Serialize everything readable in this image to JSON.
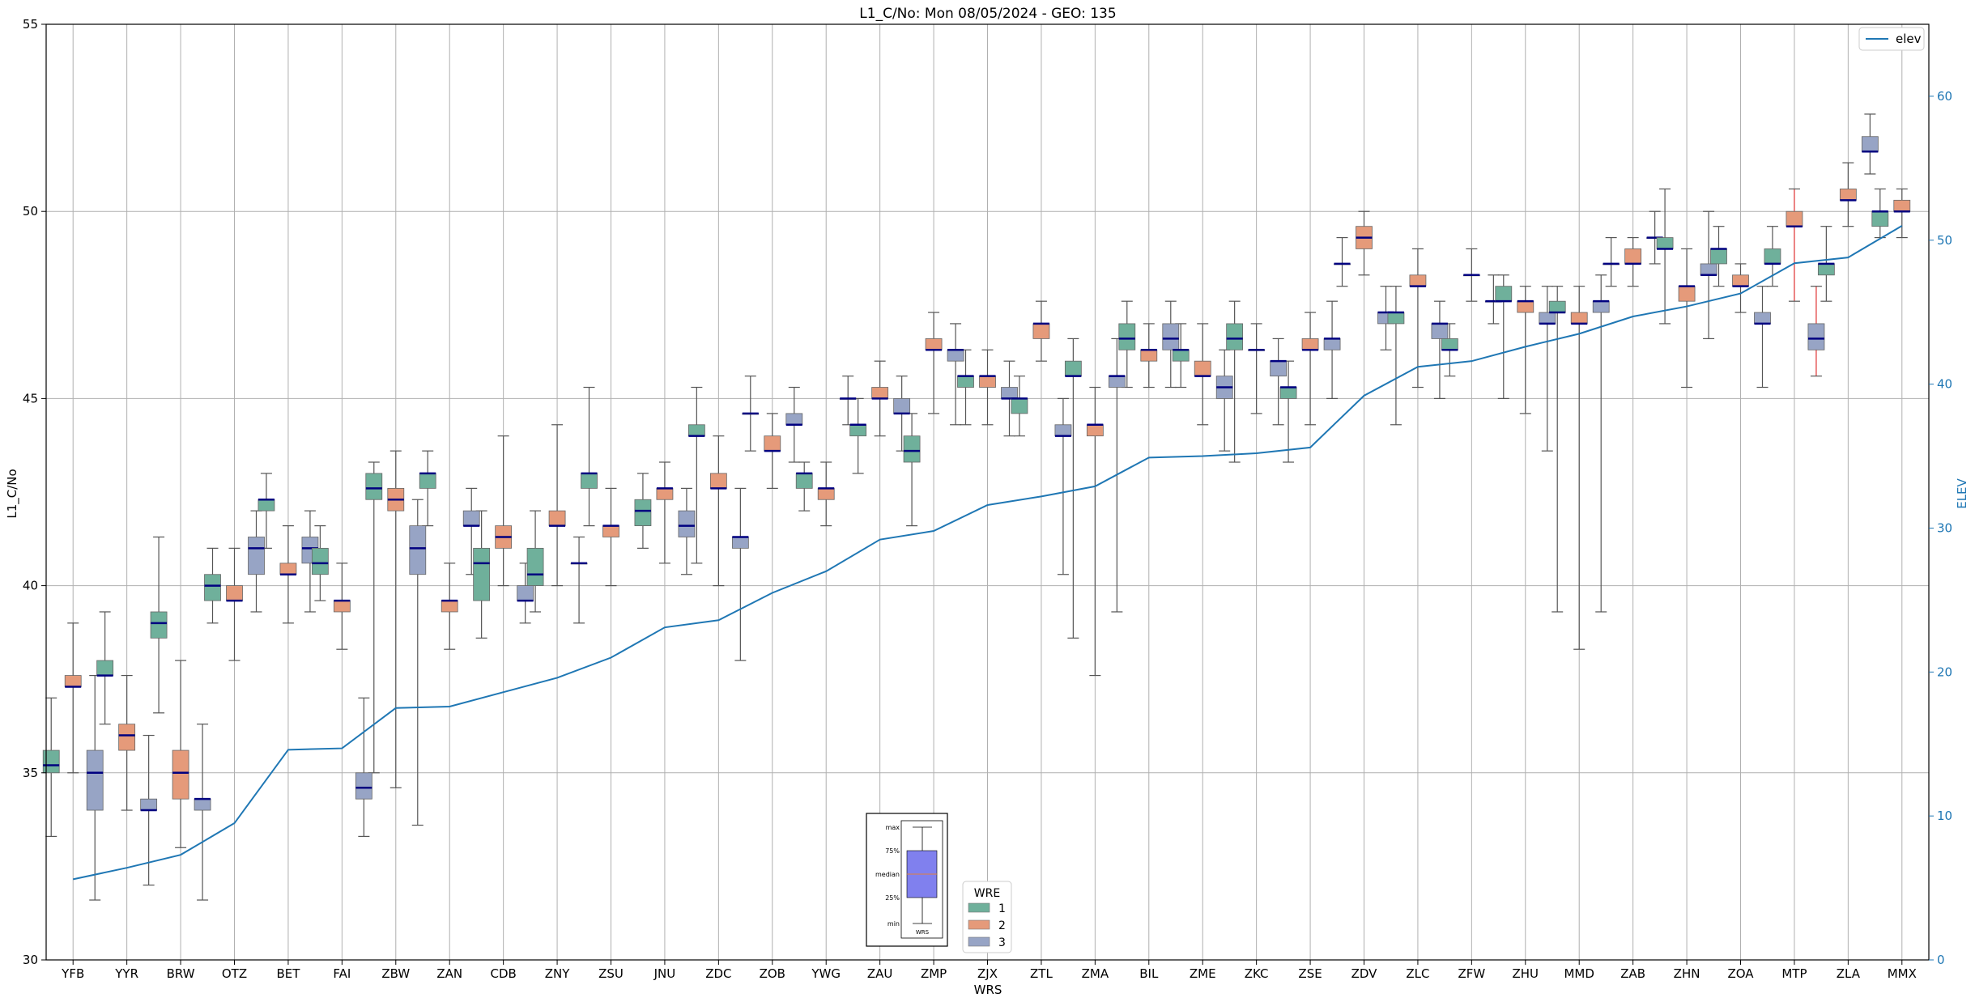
{
  "chart_data": {
    "type": "box",
    "title": "L1_C/No: Mon 08/05/2024 - GEO: 135",
    "xlabel": "WRS",
    "ylabel": "L1_C/No",
    "y2label": "ELEV",
    "ylim": [
      30,
      55
    ],
    "y2lim": [
      0,
      65
    ],
    "yticks": [
      30,
      35,
      40,
      45,
      50,
      55
    ],
    "y2ticks": [
      0,
      10,
      20,
      30,
      40,
      50,
      60
    ],
    "grid": true,
    "categories": [
      "YFB",
      "YYR",
      "BRW",
      "OTZ",
      "BET",
      "FAI",
      "ZBW",
      "ZAN",
      "CDB",
      "ZNY",
      "ZSU",
      "JNU",
      "ZDC",
      "ZOB",
      "YWG",
      "ZAU",
      "ZMP",
      "ZJX",
      "ZTL",
      "ZMA",
      "BIL",
      "ZME",
      "ZKC",
      "ZSE",
      "ZDV",
      "ZLC",
      "ZFW",
      "ZHU",
      "MMD",
      "ZAB",
      "ZHN",
      "ZOA",
      "MTP",
      "ZLA",
      "MMX"
    ],
    "legend_wre": {
      "title": "WRE",
      "placement": "bottom-center",
      "entries": [
        {
          "label": "1",
          "color": "#6fb09b"
        },
        {
          "label": "2",
          "color": "#e59a7a"
        },
        {
          "label": "3",
          "color": "#97a4c5"
        }
      ]
    },
    "legend_elev": {
      "label": "elev",
      "placement": "top-right",
      "color": "#1f77b4"
    },
    "key_box": {
      "labels": [
        "max",
        "75%",
        "median",
        "25%",
        "min"
      ],
      "footer": "WRS"
    },
    "median_color": "#000080",
    "whisker_color": "#555555",
    "highlight_whisker_color": "#e03030",
    "elevation": [
      5.6,
      6.4,
      7.3,
      9.5,
      14.6,
      14.7,
      17.5,
      17.6,
      18.6,
      19.6,
      21.0,
      23.1,
      23.6,
      25.5,
      27.0,
      29.2,
      29.8,
      31.6,
      32.2,
      32.9,
      34.9,
      35.0,
      35.2,
      35.6,
      39.2,
      41.2,
      41.6,
      42.6,
      43.5,
      44.7,
      45.4,
      46.3,
      48.4,
      48.8,
      51.0
    ],
    "boxes": [
      {
        "site": "YFB",
        "wre": 1,
        "min": 33.3,
        "q1": 35.0,
        "median": 35.2,
        "q3": 35.6,
        "max": 37.0
      },
      {
        "site": "YFB",
        "wre": 2,
        "min": 35.0,
        "q1": 37.3,
        "median": 37.3,
        "q3": 37.6,
        "max": 39.0
      },
      {
        "site": "YFB",
        "wre": 3,
        "min": 31.6,
        "q1": 34.0,
        "median": 35.0,
        "q3": 35.6,
        "max": 37.6
      },
      {
        "site": "YYR",
        "wre": 1,
        "min": 36.3,
        "q1": 37.6,
        "median": 37.6,
        "q3": 38.0,
        "max": 39.3
      },
      {
        "site": "YYR",
        "wre": 2,
        "min": 34.0,
        "q1": 35.6,
        "median": 36.0,
        "q3": 36.3,
        "max": 37.6
      },
      {
        "site": "YYR",
        "wre": 3,
        "min": 32.0,
        "q1": 34.0,
        "median": 34.0,
        "q3": 34.3,
        "max": 36.0
      },
      {
        "site": "BRW",
        "wre": 1,
        "min": 36.6,
        "q1": 38.6,
        "median": 39.0,
        "q3": 39.3,
        "max": 41.3
      },
      {
        "site": "BRW",
        "wre": 2,
        "min": 33.0,
        "q1": 34.3,
        "median": 35.0,
        "q3": 35.6,
        "max": 38.0
      },
      {
        "site": "BRW",
        "wre": 3,
        "min": 31.6,
        "q1": 34.0,
        "median": 34.3,
        "q3": 34.3,
        "max": 36.3
      },
      {
        "site": "OTZ",
        "wre": 1,
        "min": 39.0,
        "q1": 39.6,
        "median": 40.0,
        "q3": 40.3,
        "max": 41.0
      },
      {
        "site": "OTZ",
        "wre": 2,
        "min": 38.0,
        "q1": 39.6,
        "median": 39.6,
        "q3": 40.0,
        "max": 41.0
      },
      {
        "site": "OTZ",
        "wre": 3,
        "min": 39.3,
        "q1": 40.3,
        "median": 41.0,
        "q3": 41.3,
        "max": 42.0
      },
      {
        "site": "BET",
        "wre": 1,
        "min": 41.0,
        "q1": 42.0,
        "median": 42.3,
        "q3": 42.3,
        "max": 43.0
      },
      {
        "site": "BET",
        "wre": 2,
        "min": 39.0,
        "q1": 40.3,
        "median": 40.3,
        "q3": 40.6,
        "max": 41.6
      },
      {
        "site": "BET",
        "wre": 3,
        "min": 39.3,
        "q1": 40.6,
        "median": 41.0,
        "q3": 41.3,
        "max": 42.0
      },
      {
        "site": "FAI",
        "wre": 1,
        "min": 39.6,
        "q1": 40.3,
        "median": 40.6,
        "q3": 41.0,
        "max": 41.6
      },
      {
        "site": "FAI",
        "wre": 2,
        "min": 38.3,
        "q1": 39.3,
        "median": 39.6,
        "q3": 39.6,
        "max": 40.6
      },
      {
        "site": "FAI",
        "wre": 3,
        "min": 33.3,
        "q1": 34.3,
        "median": 34.6,
        "q3": 35.0,
        "max": 37.0
      },
      {
        "site": "ZBW",
        "wre": 1,
        "min": 35.0,
        "q1": 42.3,
        "median": 42.6,
        "q3": 43.0,
        "max": 43.3
      },
      {
        "site": "ZBW",
        "wre": 2,
        "min": 34.6,
        "q1": 42.0,
        "median": 42.3,
        "q3": 42.6,
        "max": 43.6
      },
      {
        "site": "ZBW",
        "wre": 3,
        "min": 33.6,
        "q1": 40.3,
        "median": 41.0,
        "q3": 41.6,
        "max": 42.3
      },
      {
        "site": "ZAN",
        "wre": 1,
        "min": 41.6,
        "q1": 42.6,
        "median": 43.0,
        "q3": 43.0,
        "max": 43.6
      },
      {
        "site": "ZAN",
        "wre": 2,
        "min": 38.3,
        "q1": 39.3,
        "median": 39.6,
        "q3": 39.6,
        "max": 40.6
      },
      {
        "site": "ZAN",
        "wre": 3,
        "min": 40.3,
        "q1": 41.6,
        "median": 41.6,
        "q3": 42.0,
        "max": 42.6
      },
      {
        "site": "CDB",
        "wre": 1,
        "min": 38.6,
        "q1": 39.6,
        "median": 40.6,
        "q3": 41.0,
        "max": 42.0
      },
      {
        "site": "CDB",
        "wre": 2,
        "min": 40.0,
        "q1": 41.0,
        "median": 41.3,
        "q3": 41.6,
        "max": 44.0
      },
      {
        "site": "CDB",
        "wre": 3,
        "min": 39.0,
        "q1": 39.6,
        "median": 39.6,
        "q3": 40.0,
        "max": 40.6
      },
      {
        "site": "ZNY",
        "wre": 1,
        "min": 39.3,
        "q1": 40.0,
        "median": 40.3,
        "q3": 41.0,
        "max": 42.0
      },
      {
        "site": "ZNY",
        "wre": 2,
        "min": 40.0,
        "q1": 41.6,
        "median": 41.6,
        "q3": 42.0,
        "max": 44.3
      },
      {
        "site": "ZNY",
        "wre": 3,
        "min": 39.0,
        "q1": 40.6,
        "median": 40.6,
        "q3": 40.6,
        "max": 41.3
      },
      {
        "site": "ZSU",
        "wre": 1,
        "min": 41.6,
        "q1": 42.6,
        "median": 43.0,
        "q3": 43.0,
        "max": 45.3
      },
      {
        "site": "ZSU",
        "wre": 2,
        "min": 40.0,
        "q1": 41.3,
        "median": 41.6,
        "q3": 41.6,
        "max": 42.6
      },
      {
        "site": "JNU",
        "wre": 1,
        "min": 41.0,
        "q1": 41.6,
        "median": 42.0,
        "q3": 42.3,
        "max": 43.0
      },
      {
        "site": "JNU",
        "wre": 2,
        "min": 40.6,
        "q1": 42.3,
        "median": 42.6,
        "q3": 42.6,
        "max": 43.3
      },
      {
        "site": "JNU",
        "wre": 3,
        "min": 40.3,
        "q1": 41.3,
        "median": 41.6,
        "q3": 42.0,
        "max": 42.6
      },
      {
        "site": "ZDC",
        "wre": 1,
        "min": 40.6,
        "q1": 44.0,
        "median": 44.0,
        "q3": 44.3,
        "max": 45.3
      },
      {
        "site": "ZDC",
        "wre": 2,
        "min": 40.0,
        "q1": 42.6,
        "median": 42.6,
        "q3": 43.0,
        "max": 44.0
      },
      {
        "site": "ZDC",
        "wre": 3,
        "min": 38.0,
        "q1": 41.0,
        "median": 41.3,
        "q3": 41.3,
        "max": 42.6
      },
      {
        "site": "ZOB",
        "wre": 1,
        "min": 43.6,
        "q1": 44.6,
        "median": 44.6,
        "q3": 44.6,
        "max": 45.6
      },
      {
        "site": "ZOB",
        "wre": 2,
        "min": 42.6,
        "q1": 43.6,
        "median": 43.6,
        "q3": 44.0,
        "max": 44.6
      },
      {
        "site": "ZOB",
        "wre": 3,
        "min": 43.3,
        "q1": 44.3,
        "median": 44.3,
        "q3": 44.6,
        "max": 45.3
      },
      {
        "site": "YWG",
        "wre": 1,
        "min": 42.0,
        "q1": 42.6,
        "median": 43.0,
        "q3": 43.0,
        "max": 43.3
      },
      {
        "site": "YWG",
        "wre": 2,
        "min": 41.6,
        "q1": 42.3,
        "median": 42.6,
        "q3": 42.6,
        "max": 43.3
      },
      {
        "site": "YWG",
        "wre": 3,
        "min": 44.3,
        "q1": 45.0,
        "median": 45.0,
        "q3": 45.0,
        "max": 45.6
      },
      {
        "site": "ZAU",
        "wre": 1,
        "min": 43.0,
        "q1": 44.0,
        "median": 44.3,
        "q3": 44.3,
        "max": 45.0
      },
      {
        "site": "ZAU",
        "wre": 2,
        "min": 44.0,
        "q1": 45.0,
        "median": 45.0,
        "q3": 45.3,
        "max": 46.0
      },
      {
        "site": "ZAU",
        "wre": 3,
        "min": 43.6,
        "q1": 44.6,
        "median": 44.6,
        "q3": 45.0,
        "max": 45.6
      },
      {
        "site": "ZMP",
        "wre": 1,
        "min": 41.6,
        "q1": 43.3,
        "median": 43.6,
        "q3": 44.0,
        "max": 44.6
      },
      {
        "site": "ZMP",
        "wre": 2,
        "min": 44.6,
        "q1": 46.3,
        "median": 46.3,
        "q3": 46.6,
        "max": 47.3
      },
      {
        "site": "ZMP",
        "wre": 3,
        "min": 44.3,
        "q1": 46.0,
        "median": 46.3,
        "q3": 46.3,
        "max": 47.0
      },
      {
        "site": "ZJX",
        "wre": 1,
        "min": 44.3,
        "q1": 45.3,
        "median": 45.6,
        "q3": 45.6,
        "max": 46.3
      },
      {
        "site": "ZJX",
        "wre": 2,
        "min": 44.3,
        "q1": 45.3,
        "median": 45.6,
        "q3": 45.6,
        "max": 46.3
      },
      {
        "site": "ZJX",
        "wre": 3,
        "min": 44.0,
        "q1": 45.0,
        "median": 45.0,
        "q3": 45.3,
        "max": 46.0
      },
      {
        "site": "ZTL",
        "wre": 1,
        "min": 44.0,
        "q1": 44.6,
        "median": 45.0,
        "q3": 45.0,
        "max": 45.6
      },
      {
        "site": "ZTL",
        "wre": 2,
        "min": 46.0,
        "q1": 46.6,
        "median": 47.0,
        "q3": 47.0,
        "max": 47.6
      },
      {
        "site": "ZTL",
        "wre": 3,
        "min": 40.3,
        "q1": 44.0,
        "median": 44.0,
        "q3": 44.3,
        "max": 45.0
      },
      {
        "site": "ZMA",
        "wre": 1,
        "min": 38.6,
        "q1": 45.6,
        "median": 45.6,
        "q3": 46.0,
        "max": 46.6
      },
      {
        "site": "ZMA",
        "wre": 2,
        "min": 37.6,
        "q1": 44.0,
        "median": 44.3,
        "q3": 44.3,
        "max": 45.3
      },
      {
        "site": "ZMA",
        "wre": 3,
        "min": 39.3,
        "q1": 45.3,
        "median": 45.6,
        "q3": 45.6,
        "max": 46.6
      },
      {
        "site": "BIL",
        "wre": 1,
        "min": 45.3,
        "q1": 46.3,
        "median": 46.6,
        "q3": 47.0,
        "max": 47.6
      },
      {
        "site": "BIL",
        "wre": 2,
        "min": 45.3,
        "q1": 46.0,
        "median": 46.3,
        "q3": 46.3,
        "max": 47.0
      },
      {
        "site": "BIL",
        "wre": 3,
        "min": 45.3,
        "q1": 46.3,
        "median": 46.6,
        "q3": 47.0,
        "max": 47.6
      },
      {
        "site": "ZME",
        "wre": 1,
        "min": 45.3,
        "q1": 46.0,
        "median": 46.3,
        "q3": 46.3,
        "max": 47.0
      },
      {
        "site": "ZME",
        "wre": 2,
        "min": 44.3,
        "q1": 45.6,
        "median": 45.6,
        "q3": 46.0,
        "max": 47.0
      },
      {
        "site": "ZME",
        "wre": 3,
        "min": 43.6,
        "q1": 45.0,
        "median": 45.3,
        "q3": 45.6,
        "max": 46.3
      },
      {
        "site": "ZKC",
        "wre": 1,
        "min": 43.3,
        "q1": 46.3,
        "median": 46.6,
        "q3": 47.0,
        "max": 47.6
      },
      {
        "site": "ZKC",
        "wre": 2,
        "min": 44.6,
        "q1": 46.3,
        "median": 46.3,
        "q3": 46.3,
        "max": 47.0
      },
      {
        "site": "ZKC",
        "wre": 3,
        "min": 44.3,
        "q1": 45.6,
        "median": 46.0,
        "q3": 46.0,
        "max": 46.6
      },
      {
        "site": "ZSE",
        "wre": 1,
        "min": 43.3,
        "q1": 45.0,
        "median": 45.3,
        "q3": 45.3,
        "max": 46.0
      },
      {
        "site": "ZSE",
        "wre": 2,
        "min": 44.3,
        "q1": 46.3,
        "median": 46.3,
        "q3": 46.6,
        "max": 47.3
      },
      {
        "site": "ZSE",
        "wre": 3,
        "min": 45.0,
        "q1": 46.3,
        "median": 46.6,
        "q3": 46.6,
        "max": 47.6
      },
      {
        "site": "ZDV",
        "wre": 1,
        "min": 48.0,
        "q1": 48.6,
        "median": 48.6,
        "q3": 48.6,
        "max": 49.3
      },
      {
        "site": "ZDV",
        "wre": 2,
        "min": 48.3,
        "q1": 49.0,
        "median": 49.3,
        "q3": 49.6,
        "max": 50.0
      },
      {
        "site": "ZDV",
        "wre": 3,
        "min": 46.3,
        "q1": 47.0,
        "median": 47.3,
        "q3": 47.3,
        "max": 48.0
      },
      {
        "site": "ZLC",
        "wre": 1,
        "min": 44.3,
        "q1": 47.0,
        "median": 47.3,
        "q3": 47.3,
        "max": 48.0
      },
      {
        "site": "ZLC",
        "wre": 2,
        "min": 45.3,
        "q1": 48.0,
        "median": 48.0,
        "q3": 48.3,
        "max": 49.0
      },
      {
        "site": "ZLC",
        "wre": 3,
        "min": 45.0,
        "q1": 46.6,
        "median": 47.0,
        "q3": 47.0,
        "max": 47.6
      },
      {
        "site": "ZFW",
        "wre": 1,
        "min": 45.6,
        "q1": 46.3,
        "median": 46.3,
        "q3": 46.6,
        "max": 47.0
      },
      {
        "site": "ZFW",
        "wre": 2,
        "min": 47.6,
        "q1": 48.3,
        "median": 48.3,
        "q3": 48.3,
        "max": 49.0
      },
      {
        "site": "ZFW",
        "wre": 3,
        "min": 47.0,
        "q1": 47.6,
        "median": 47.6,
        "q3": 47.6,
        "max": 48.3
      },
      {
        "site": "ZHU",
        "wre": 1,
        "min": 45.0,
        "q1": 47.6,
        "median": 47.6,
        "q3": 48.0,
        "max": 48.3
      },
      {
        "site": "ZHU",
        "wre": 2,
        "min": 44.6,
        "q1": 47.3,
        "median": 47.6,
        "q3": 47.6,
        "max": 48.0
      },
      {
        "site": "ZHU",
        "wre": 3,
        "min": 43.6,
        "q1": 47.0,
        "median": 47.0,
        "q3": 47.3,
        "max": 48.0
      },
      {
        "site": "MMD",
        "wre": 1,
        "min": 39.3,
        "q1": 47.3,
        "median": 47.3,
        "q3": 47.6,
        "max": 48.0
      },
      {
        "site": "MMD",
        "wre": 2,
        "min": 38.3,
        "q1": 47.0,
        "median": 47.0,
        "q3": 47.3,
        "max": 48.0
      },
      {
        "site": "MMD",
        "wre": 3,
        "min": 39.3,
        "q1": 47.3,
        "median": 47.6,
        "q3": 47.6,
        "max": 48.3
      },
      {
        "site": "ZAB",
        "wre": 1,
        "min": 48.0,
        "q1": 48.6,
        "median": 48.6,
        "q3": 48.6,
        "max": 49.3
      },
      {
        "site": "ZAB",
        "wre": 2,
        "min": 48.0,
        "q1": 48.6,
        "median": 48.6,
        "q3": 49.0,
        "max": 49.3
      },
      {
        "site": "ZAB",
        "wre": 3,
        "min": 48.6,
        "q1": 49.3,
        "median": 49.3,
        "q3": 49.3,
        "max": 50.0
      },
      {
        "site": "ZHN",
        "wre": 1,
        "min": 47.0,
        "q1": 49.0,
        "median": 49.0,
        "q3": 49.3,
        "max": 50.6
      },
      {
        "site": "ZHN",
        "wre": 2,
        "min": 45.3,
        "q1": 47.6,
        "median": 48.0,
        "q3": 48.0,
        "max": 49.0
      },
      {
        "site": "ZHN",
        "wre": 3,
        "min": 46.6,
        "q1": 48.3,
        "median": 48.3,
        "q3": 48.6,
        "max": 50.0
      },
      {
        "site": "ZOA",
        "wre": 1,
        "min": 48.0,
        "q1": 48.6,
        "median": 49.0,
        "q3": 49.0,
        "max": 49.6
      },
      {
        "site": "ZOA",
        "wre": 2,
        "min": 47.3,
        "q1": 48.0,
        "median": 48.0,
        "q3": 48.3,
        "max": 48.6
      },
      {
        "site": "ZOA",
        "wre": 3,
        "min": 45.3,
        "q1": 47.0,
        "median": 47.0,
        "q3": 47.3,
        "max": 48.0
      },
      {
        "site": "MTP",
        "wre": 1,
        "min": 48.0,
        "q1": 48.6,
        "median": 48.6,
        "q3": 49.0,
        "max": 49.6
      },
      {
        "site": "MTP",
        "wre": 2,
        "min": 47.6,
        "q1": 49.6,
        "median": 49.6,
        "q3": 50.0,
        "max": 50.6,
        "red_whisker": true
      },
      {
        "site": "MTP",
        "wre": 3,
        "min": 45.6,
        "q1": 46.3,
        "median": 46.6,
        "q3": 47.0,
        "max": 48.0,
        "red_whisker": true
      },
      {
        "site": "ZLA",
        "wre": 1,
        "min": 47.6,
        "q1": 48.3,
        "median": 48.6,
        "q3": 48.6,
        "max": 49.6
      },
      {
        "site": "ZLA",
        "wre": 2,
        "min": 49.6,
        "q1": 50.3,
        "median": 50.3,
        "q3": 50.6,
        "max": 51.3
      },
      {
        "site": "ZLA",
        "wre": 3,
        "min": 51.0,
        "q1": 51.6,
        "median": 51.6,
        "q3": 52.0,
        "max": 52.6
      },
      {
        "site": "MMX",
        "wre": 1,
        "min": 49.3,
        "q1": 49.6,
        "median": 50.0,
        "q3": 50.0,
        "max": 50.6
      },
      {
        "site": "MMX",
        "wre": 2,
        "min": 49.3,
        "q1": 50.0,
        "median": 50.0,
        "q3": 50.3,
        "max": 50.6
      }
    ]
  }
}
